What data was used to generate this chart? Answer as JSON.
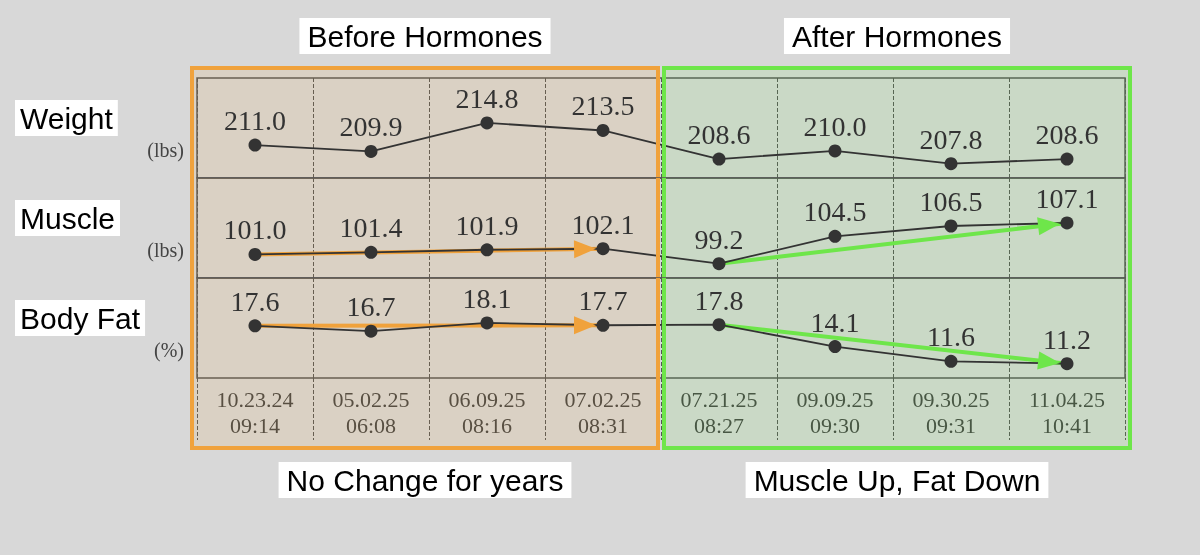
{
  "chart_data": [
    {
      "type": "line",
      "title": "Weight",
      "ylabel": "(lbs)",
      "categories": [
        "10.23.24 09:14",
        "05.02.25 06:08",
        "06.09.25 08:16",
        "07.02.25 08:31",
        "07.21.25 08:27",
        "09.09.25 09:30",
        "09.30.25 09:31",
        "11.04.25 10:41"
      ],
      "values": [
        211.0,
        209.9,
        214.8,
        213.5,
        208.6,
        210.0,
        207.8,
        208.6
      ],
      "value_labels": [
        "211.0",
        "209.9",
        "214.8",
        "213.5",
        "208.6",
        "210.0",
        "207.8",
        "208.6"
      ],
      "color": "#333333",
      "marker": "circle",
      "line_style": "solid",
      "grid": "x",
      "tick_labels": false,
      "bands": [
        {
          "axis": "x",
          "from": "10.23.24 09:14",
          "to": "07.02.25 08:31",
          "label": "Before Hormones",
          "color": "#f0a23c"
        },
        {
          "axis": "x",
          "from": "07.21.25 08:27",
          "to": "11.04.25 10:41",
          "label": "After Hormones",
          "color": "#6ee64a"
        }
      ]
    },
    {
      "type": "line",
      "title": "Muscle",
      "ylabel": "(lbs)",
      "categories": [
        "10.23.24 09:14",
        "05.02.25 06:08",
        "06.09.25 08:16",
        "07.02.25 08:31",
        "07.21.25 08:27",
        "09.09.25 09:30",
        "09.30.25 09:31",
        "11.04.25 10:41"
      ],
      "series": [
        {
          "color": "#333333",
          "values": [
            101.0,
            101.4,
            101.9,
            102.1,
            99.2,
            104.5,
            106.5,
            107.1
          ],
          "value_labels": [
            "101.0",
            "101.4",
            "101.9",
            "102.1",
            "99.2",
            "104.5",
            "106.5",
            "107.1"
          ]
        },
        {
          "type": "line",
          "color": "#f0a23c",
          "marker": "none",
          "x": [
            "10.23.24 09:14",
            "07.02.25 08:31"
          ],
          "values": [
            101.0,
            102.1
          ]
        },
        {
          "type": "line",
          "color": "#6ee64a",
          "marker": "none",
          "x": [
            "07.21.25 08:27",
            "11.04.25 10:41"
          ],
          "values": [
            99.2,
            107.1
          ]
        }
      ],
      "marker": "circle",
      "line_style": "solid",
      "grid": "x",
      "tick_labels": false,
      "bands": [
        {
          "axis": "x",
          "from": "10.23.24 09:14",
          "to": "07.02.25 08:31",
          "color": "#f0a23c"
        },
        {
          "axis": "x",
          "from": "07.21.25 08:27",
          "to": "11.04.25 10:41",
          "color": "#6ee64a"
        }
      ]
    },
    {
      "type": "line",
      "title": "Body Fat",
      "ylabel": "(%)",
      "categories": [
        "10.23.24 09:14",
        "05.02.25 06:08",
        "06.09.25 08:16",
        "07.02.25 08:31",
        "07.21.25 08:27",
        "09.09.25 09:30",
        "09.30.25 09:31",
        "11.04.25 10:41"
      ],
      "series": [
        {
          "color": "#333333",
          "values": [
            17.6,
            16.7,
            18.1,
            17.7,
            17.8,
            14.1,
            11.6,
            11.2
          ],
          "value_labels": [
            "17.6",
            "16.7",
            "18.1",
            "17.7",
            "17.8",
            "14.1",
            "11.6",
            "11.2"
          ]
        },
        {
          "type": "line",
          "color": "#f0a23c",
          "marker": "none",
          "x": [
            "10.23.24 09:14",
            "07.02.25 08:31"
          ],
          "values": [
            17.6,
            17.7
          ]
        },
        {
          "type": "line",
          "color": "#6ee64a",
          "marker": "none",
          "x": [
            "07.21.25 08:27",
            "11.04.25 10:41"
          ],
          "values": [
            17.8,
            11.2
          ]
        }
      ],
      "marker": "circle",
      "line_style": "solid",
      "grid": "x",
      "tick_labels": "x",
      "bands": [
        {
          "axis": "x",
          "from": "10.23.24 09:14",
          "to": "07.02.25 08:31",
          "color": "#f0a23c"
        },
        {
          "axis": "x",
          "from": "07.21.25 08:27",
          "to": "11.04.25 10:41",
          "color": "#6ee64a"
        }
      ],
      "annotations": [
        "No Change for years",
        "Muscle Up, Fat Down"
      ]
    }
  ]
}
